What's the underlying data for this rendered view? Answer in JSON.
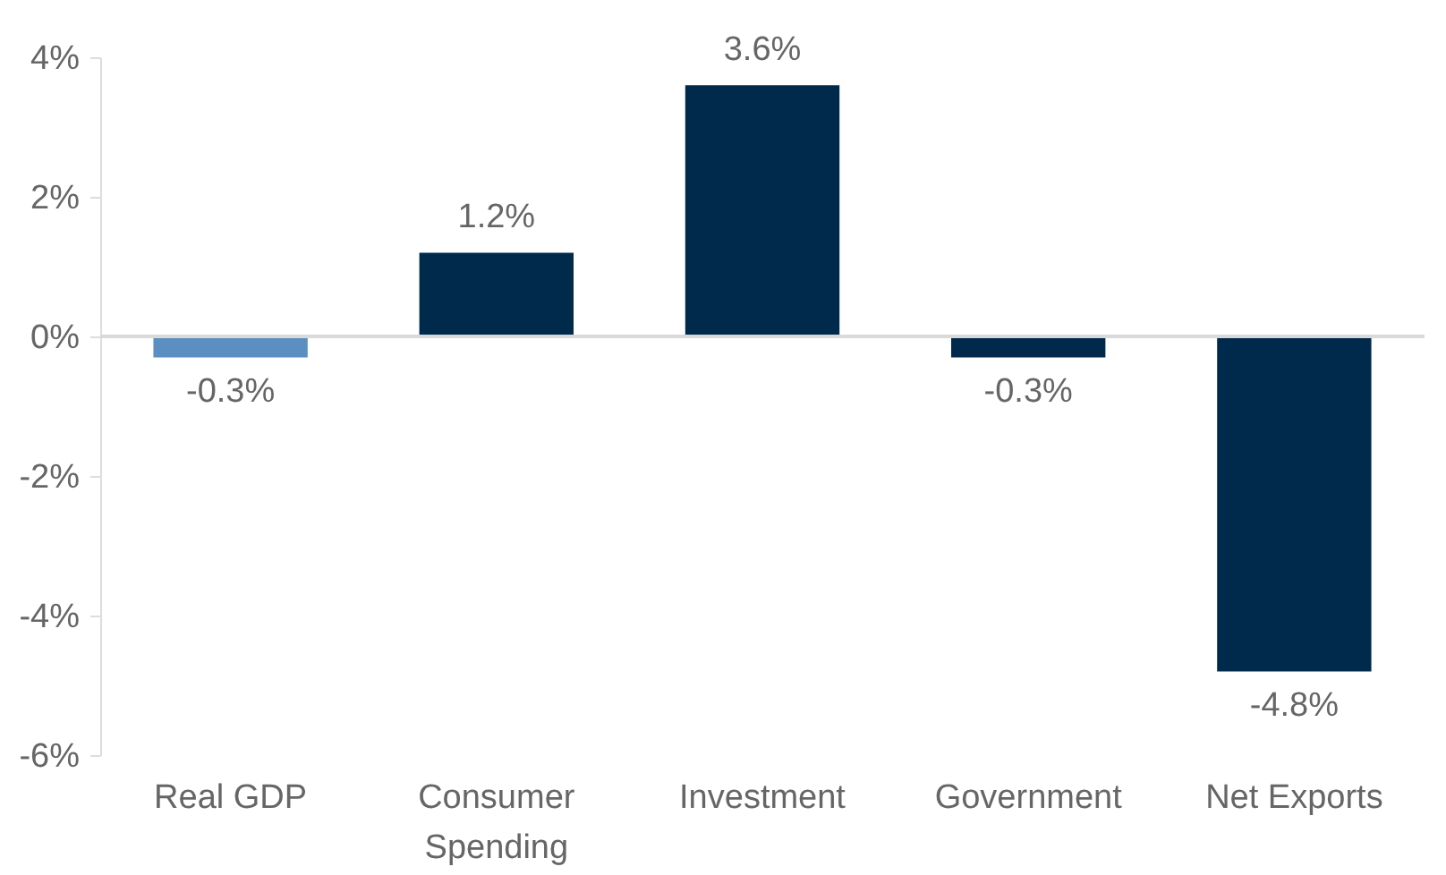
{
  "chart_data": {
    "type": "bar",
    "categories": [
      "Real GDP",
      "Consumer Spending",
      "Investment",
      "Government",
      "Net Exports"
    ],
    "values": [
      -0.3,
      1.2,
      3.6,
      -0.3,
      -4.8
    ],
    "colors": [
      "#5b8ec1",
      "#002a4c",
      "#002a4c",
      "#002a4c",
      "#002a4c"
    ],
    "value_labels": [
      "-0.3%",
      "1.2%",
      "3.6%",
      "-0.3%",
      "-4.8%"
    ],
    "ylim": [
      -6,
      4
    ],
    "yticks": [
      {
        "value": -6,
        "label": "-6%"
      },
      {
        "value": -4,
        "label": "-4%"
      },
      {
        "value": -2,
        "label": "-2%"
      },
      {
        "value": 0,
        "label": "0%"
      },
      {
        "value": 2,
        "label": "2%"
      },
      {
        "value": 4,
        "label": "4%"
      }
    ],
    "ref_lines": [
      {
        "axis": "y",
        "value": 0
      }
    ],
    "grid": false
  }
}
